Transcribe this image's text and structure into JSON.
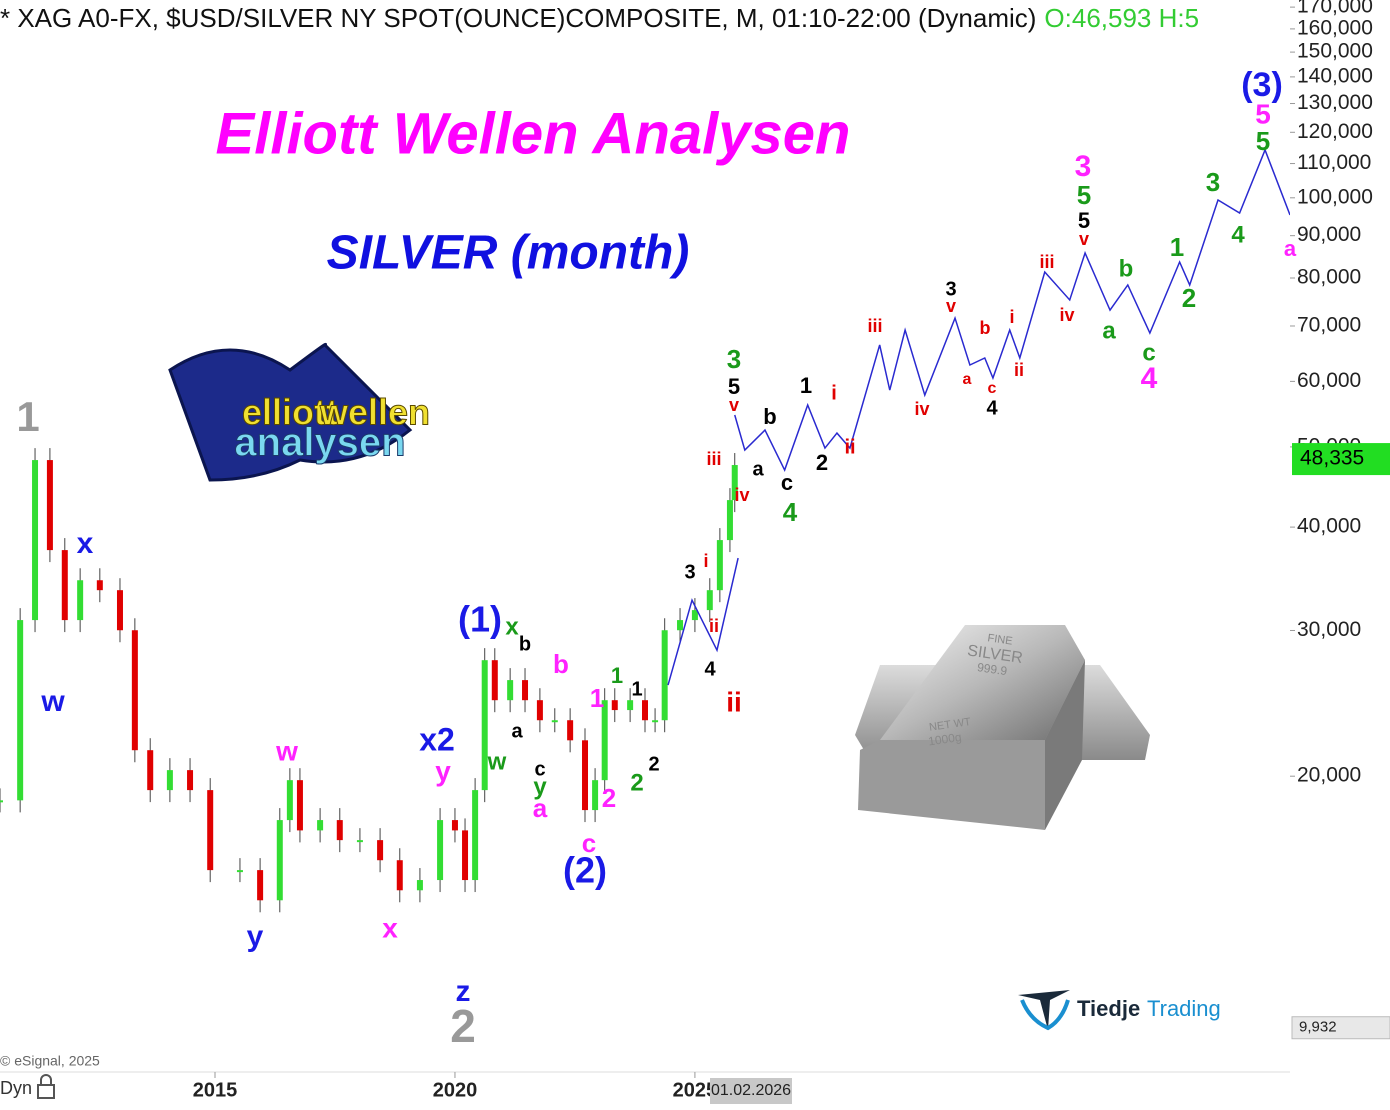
{
  "header": {
    "symbol": "* XAG A0-FX, $USD/SILVER NY SPOT(OUNCE)COMPOSITE, M, 01:10-22:00 (Dynamic)",
    "ohlc": "O:46,593 H:5"
  },
  "title": "Elliott Wellen Analysen",
  "subtitle": "SILVER (month)",
  "copyright": "© eSignal, 2025",
  "dyn": "Dyn",
  "date_box": "01.02.2026",
  "logos": {
    "elliott": [
      "elliott",
      "wellen",
      "analysen"
    ],
    "tiedje": [
      "Tiedje",
      "Trading"
    ],
    "bar": [
      "FINE",
      "SILVER",
      "999.9",
      "NET WT",
      "1000g"
    ]
  },
  "chart_data": {
    "type": "candlestick",
    "log_scale": true,
    "up_color": "#33dd33",
    "down_color": "#e00000",
    "xlim": [
      2010.52,
      2037.4
    ],
    "xticks": [
      2015,
      2020,
      2025
    ],
    "ylim": [
      8830,
      173400
    ],
    "yticks": [
      {
        "value": 20000,
        "label": "20,000"
      },
      {
        "value": 30000,
        "label": "30,000"
      },
      {
        "value": 40000,
        "label": "40,000"
      },
      {
        "value": 50000,
        "label": "50,000"
      },
      {
        "value": 60000,
        "label": "60,000"
      },
      {
        "value": 70000,
        "label": "70,000"
      },
      {
        "value": 80000,
        "label": "80,000"
      },
      {
        "value": 90000,
        "label": "90,000"
      },
      {
        "value": 100000,
        "label": "100,000"
      },
      {
        "value": 110000,
        "label": "110,000"
      },
      {
        "value": 120000,
        "label": "120,000"
      },
      {
        "value": 130000,
        "label": "130,000"
      },
      {
        "value": 140000,
        "label": "140,000"
      },
      {
        "value": 150000,
        "label": "150,000"
      },
      {
        "value": 160000,
        "label": "160,000"
      },
      {
        "value": 170000,
        "label": "170,000"
      }
    ],
    "x": [
      2010.52,
      2010.94,
      2011.25,
      2011.56,
      2011.87,
      2012.19,
      2012.6,
      2013.02,
      2013.33,
      2013.65,
      2014.06,
      2014.48,
      2014.9,
      2015.52,
      2015.94,
      2016.35,
      2016.56,
      2016.77,
      2017.19,
      2017.6,
      2018.02,
      2018.44,
      2018.85,
      2019.27,
      2019.69,
      2020,
      2020.21,
      2020.42,
      2020.62,
      2020.83,
      2021.15,
      2021.46,
      2021.77,
      2022.08,
      2022.4,
      2022.71,
      2022.92,
      2023.12,
      2023.33,
      2023.65,
      2023.96,
      2024.17,
      2024.37,
      2024.69,
      2025,
      2025.31,
      2025.52,
      2025.73,
      2025.83
    ],
    "values": [
      18700,
      30880,
      48200,
      37520,
      30880,
      34500,
      33560,
      30020,
      21500,
      19240,
      20340,
      19240,
      15400,
      15400,
      14160,
      17700,
      19780,
      17200,
      17700,
      16740,
      16740,
      15830,
      14560,
      14980,
      17700,
      17200,
      14980,
      19240,
      27620,
      24710,
      26130,
      24710,
      23370,
      23370,
      22100,
      18200,
      19780,
      24710,
      24040,
      24710,
      23370,
      23370,
      30020,
      30880,
      31750,
      33560,
      38580,
      43120,
      47540
    ],
    "projection": {
      "color": "#2a2ad0",
      "x": [
        2025.83,
        2026.04,
        2026.46,
        2026.87,
        2027.35,
        2027.71,
        2027.96,
        2028.23,
        2028.85,
        2029.06,
        2029.38,
        2029.79,
        2030.42,
        2030.73,
        2031.04,
        2031.21,
        2031.56,
        2031.77,
        2032.29,
        2032.81,
        2033.13,
        2033.65,
        2034.02,
        2034.48,
        2035.1,
        2035.31,
        2035.9,
        2036.35,
        2036.88,
        2037.4
      ],
      "values": [
        54640,
        49560,
        52400,
        46880,
        56180,
        49840,
        51960,
        49840,
        66400,
        58560,
        69220,
        57760,
        71560,
        62800,
        64040,
        60560,
        69220,
        64040,
        81340,
        75260,
        85760,
        73160,
        78460,
        68640,
        83640,
        78460,
        99400,
        95860,
        114240,
        95340
      ]
    },
    "projection2": {
      "color": "#2a2ad0",
      "x": [
        2024.44,
        2024.94,
        2025.46,
        2025.9
      ],
      "values": [
        25770,
        32640,
        28400,
        36700
      ]
    },
    "last_price": {
      "value": 48335,
      "label": "48,335",
      "color": "#22dd22"
    },
    "low_marker": {
      "value": 9932,
      "label": "9,932"
    },
    "annotations": [
      {
        "text": "1",
        "color": "#999999"
      },
      {
        "text": "2",
        "color": "#999999"
      },
      {
        "text": "x",
        "color": "#1a1ae6"
      },
      {
        "text": "w",
        "color": "#1a1ae6"
      },
      {
        "text": "y",
        "color": "#1a1ae6"
      },
      {
        "text": "w",
        "color": "#ff22ff"
      },
      {
        "text": "x",
        "color": "#ff22ff"
      },
      {
        "text": "x2",
        "color": "#1a1ae6"
      },
      {
        "text": "y",
        "color": "#ff22ff"
      },
      {
        "text": "z",
        "color": "#1a1ae6"
      },
      {
        "text": "(1)",
        "color": "#1a1ae6"
      },
      {
        "text": "x",
        "color": "#1a9a1a"
      },
      {
        "text": "b",
        "color": "#000000"
      },
      {
        "text": "w",
        "color": "#1a9a1a"
      },
      {
        "text": "a",
        "color": "#000000"
      },
      {
        "text": "c",
        "color": "#000000"
      },
      {
        "text": "y",
        "color": "#1a9a1a"
      },
      {
        "text": "a",
        "color": "#ff22ff"
      },
      {
        "text": "b",
        "color": "#ff22ff"
      },
      {
        "text": "c",
        "color": "#ff22ff"
      },
      {
        "text": "(2)",
        "color": "#1a1ae6"
      },
      {
        "text": "1",
        "color": "#ff22ff"
      },
      {
        "text": "1",
        "color": "#1a9a1a"
      },
      {
        "text": "2",
        "color": "#ff22ff"
      },
      {
        "text": "1",
        "color": "#000000"
      },
      {
        "text": "2",
        "color": "#1a9a1a"
      },
      {
        "text": "2",
        "color": "#000000"
      },
      {
        "text": "3",
        "color": "#000000"
      },
      {
        "text": "i",
        "color": "#e00000"
      },
      {
        "text": "ii",
        "color": "#e00000"
      },
      {
        "text": "4",
        "color": "#000000"
      },
      {
        "text": "ii",
        "color": "#e00000"
      },
      {
        "text": "iii",
        "color": "#e00000"
      },
      {
        "text": "iv",
        "color": "#e00000"
      },
      {
        "text": "v",
        "color": "#e00000"
      },
      {
        "text": "5",
        "color": "#000000"
      },
      {
        "text": "3",
        "color": "#1a9a1a"
      },
      {
        "text": "a",
        "color": "#000000"
      },
      {
        "text": "b",
        "color": "#000000"
      },
      {
        "text": "c",
        "color": "#000000"
      },
      {
        "text": "4",
        "color": "#1a9a1a"
      },
      {
        "text": "1",
        "color": "#000000"
      },
      {
        "text": "2",
        "color": "#000000"
      },
      {
        "text": "i",
        "color": "#e00000"
      },
      {
        "text": "ii",
        "color": "#e00000"
      },
      {
        "text": "iii",
        "color": "#e00000"
      },
      {
        "text": "iv",
        "color": "#e00000"
      },
      {
        "text": "3",
        "color": "#000000"
      },
      {
        "text": "v",
        "color": "#e00000"
      },
      {
        "text": "a",
        "color": "#e00000"
      },
      {
        "text": "b",
        "color": "#e00000"
      },
      {
        "text": "c",
        "color": "#e00000"
      },
      {
        "text": "4",
        "color": "#000000"
      },
      {
        "text": "i",
        "color": "#e00000"
      },
      {
        "text": "ii",
        "color": "#e00000"
      },
      {
        "text": "iii",
        "color": "#e00000"
      },
      {
        "text": "iv",
        "color": "#e00000"
      },
      {
        "text": "3",
        "color": "#ff22ff"
      },
      {
        "text": "5",
        "color": "#1a9a1a"
      },
      {
        "text": "5",
        "color": "#000000"
      },
      {
        "text": "v",
        "color": "#e00000"
      },
      {
        "text": "b",
        "color": "#1a9a1a"
      },
      {
        "text": "a",
        "color": "#1a9a1a"
      },
      {
        "text": "c",
        "color": "#1a9a1a"
      },
      {
        "text": "4",
        "color": "#ff22ff"
      },
      {
        "text": "1",
        "color": "#1a9a1a"
      },
      {
        "text": "2",
        "color": "#1a9a1a"
      },
      {
        "text": "3",
        "color": "#1a9a1a"
      },
      {
        "text": "4",
        "color": "#1a9a1a"
      },
      {
        "text": "(3)",
        "color": "#1a1ae6"
      },
      {
        "text": "5",
        "color": "#ff22ff"
      },
      {
        "text": "5",
        "color": "#1a9a1a"
      },
      {
        "text": "a",
        "color": "#ff22ff"
      }
    ]
  }
}
